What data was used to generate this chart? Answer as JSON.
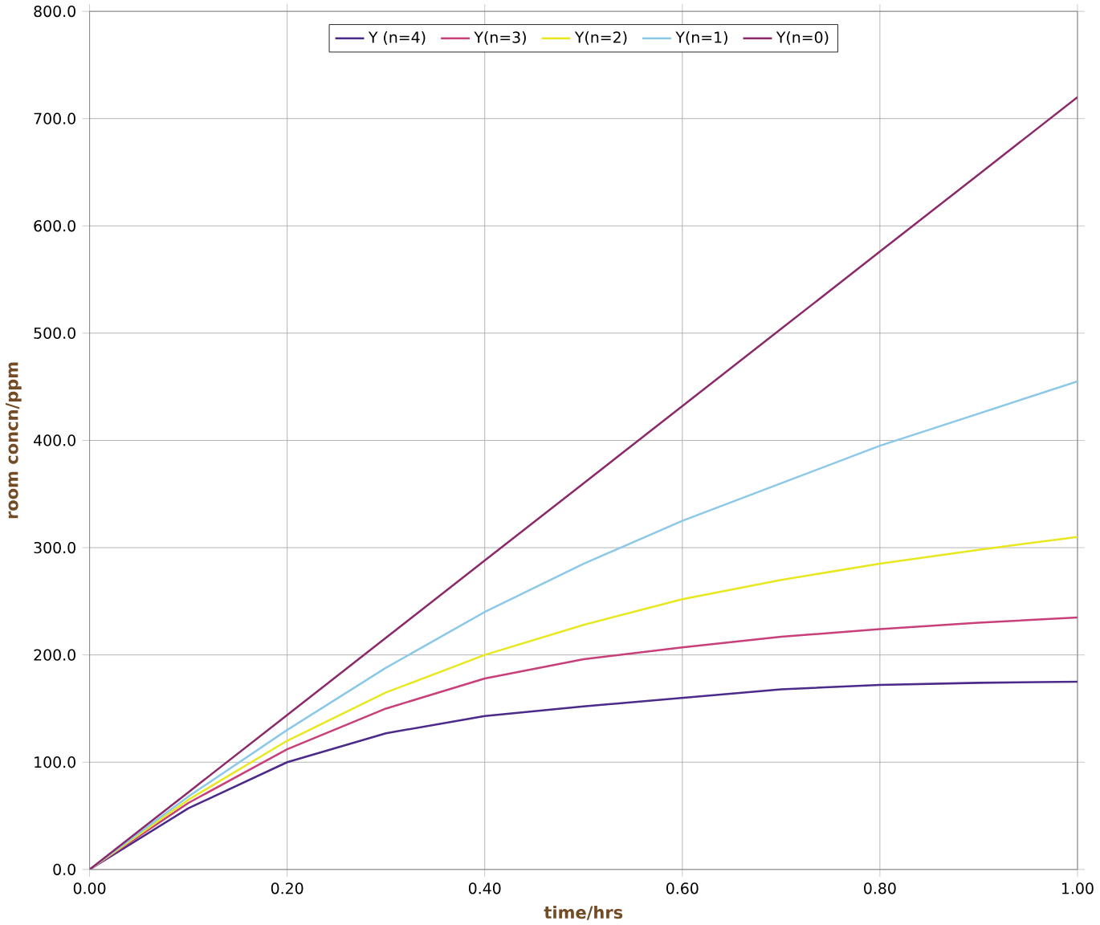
{
  "chart_data": {
    "type": "line",
    "xlabel": "time/hrs",
    "ylabel": "room concn/ppm",
    "x": [
      0,
      0.1,
      0.2,
      0.3,
      0.4,
      0.5,
      0.6,
      0.7,
      0.8,
      0.9,
      1.0
    ],
    "series": [
      {
        "name": "Y (n=4)",
        "color": "#4b2a8a",
        "values": [
          0,
          57,
          100,
          127,
          143,
          152,
          160,
          168,
          172,
          174,
          175
        ]
      },
      {
        "name": "Y(n=3)",
        "color": "#c8407a",
        "values": [
          0,
          62,
          112,
          150,
          178,
          196,
          207,
          217,
          224,
          230,
          235
        ]
      },
      {
        "name": "Y(n=2)",
        "color": "#e8e820",
        "values": [
          0,
          65,
          120,
          165,
          200,
          228,
          252,
          270,
          285,
          298,
          310
        ]
      },
      {
        "name": "Y(n=1)",
        "color": "#8cc8e8",
        "values": [
          0,
          68,
          130,
          188,
          240,
          285,
          325,
          360,
          395,
          425,
          455
        ]
      },
      {
        "name": "Y(n=0)",
        "color": "#8b2a6a",
        "values": [
          0,
          72,
          144,
          216,
          288,
          360,
          432,
          504,
          576,
          648,
          720
        ]
      }
    ],
    "xlim": [
      0,
      1
    ],
    "ylim": [
      0,
      800
    ],
    "xticks": [
      {
        "value": 0,
        "label": "0.00"
      },
      {
        "value": 0.2,
        "label": "0.20"
      },
      {
        "value": 0.4,
        "label": "0.40"
      },
      {
        "value": 0.6,
        "label": "0.60"
      },
      {
        "value": 0.8,
        "label": "0.80"
      },
      {
        "value": 1.0,
        "label": "1.00"
      }
    ],
    "yticks": [
      {
        "value": 0,
        "label": "0.0"
      },
      {
        "value": 100,
        "label": "100.0"
      },
      {
        "value": 200,
        "label": "200.0"
      },
      {
        "value": 300,
        "label": "300.0"
      },
      {
        "value": 400,
        "label": "400.0"
      },
      {
        "value": 500,
        "label": "500.0"
      },
      {
        "value": 600,
        "label": "600.0"
      },
      {
        "value": 700,
        "label": "700.0"
      },
      {
        "value": 800,
        "label": "800.0"
      }
    ],
    "grid": true,
    "legend": "top",
    "marker": "none",
    "line_style": "solid"
  }
}
